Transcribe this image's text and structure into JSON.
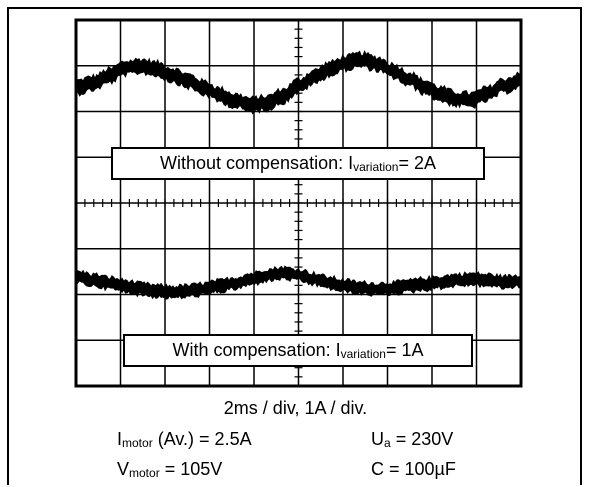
{
  "chart_data": {
    "type": "oscilloscope",
    "grid": {
      "cols": 10,
      "rows": 8
    },
    "traces": [
      {
        "label": {
          "prefix": "Without compensation: I",
          "sub": "variation",
          "suffix": " = 2A"
        },
        "values": [
          4.0,
          8.0,
          15.0,
          23.0,
          25.0,
          22.0,
          16.0,
          10.0,
          3.0,
          -4.0,
          -10.0,
          -14.0,
          -12.0,
          -5.0,
          5.0,
          14.0,
          22.0,
          28.0,
          31.0,
          27.0,
          20.0,
          12.0,
          4.0,
          -3.0,
          -8.0,
          -9.0,
          -3.0,
          5.0,
          10.0
        ],
        "noise": 7
      },
      {
        "label": {
          "prefix": "With compensation: I",
          "sub": "variation",
          "suffix": " = 1A"
        },
        "values": [
          6.0,
          3.0,
          0.0,
          -3.0,
          -6.0,
          -8.0,
          -9.0,
          -8.0,
          -6.0,
          -3.0,
          0.0,
          4.0,
          8.0,
          10.0,
          8.0,
          4.0,
          0.0,
          -3.0,
          -5.0,
          -6.0,
          -5.0,
          -3.0,
          -1.0,
          1.0,
          3.0,
          4.0,
          3.0,
          1.0,
          2.0
        ],
        "noise": 6
      }
    ],
    "scale_text": "2ms / div, 1A / div.",
    "params": [
      {
        "main": "I",
        "sub": "motor",
        "rest": " (Av.) = 2.5A"
      },
      {
        "main": "U",
        "sub": "a",
        "rest": " = 230V"
      },
      {
        "main": "V",
        "sub": "motor",
        "rest": " = 105V"
      },
      {
        "main": "C = 100µF",
        "sub": "",
        "rest": ""
      }
    ]
  }
}
